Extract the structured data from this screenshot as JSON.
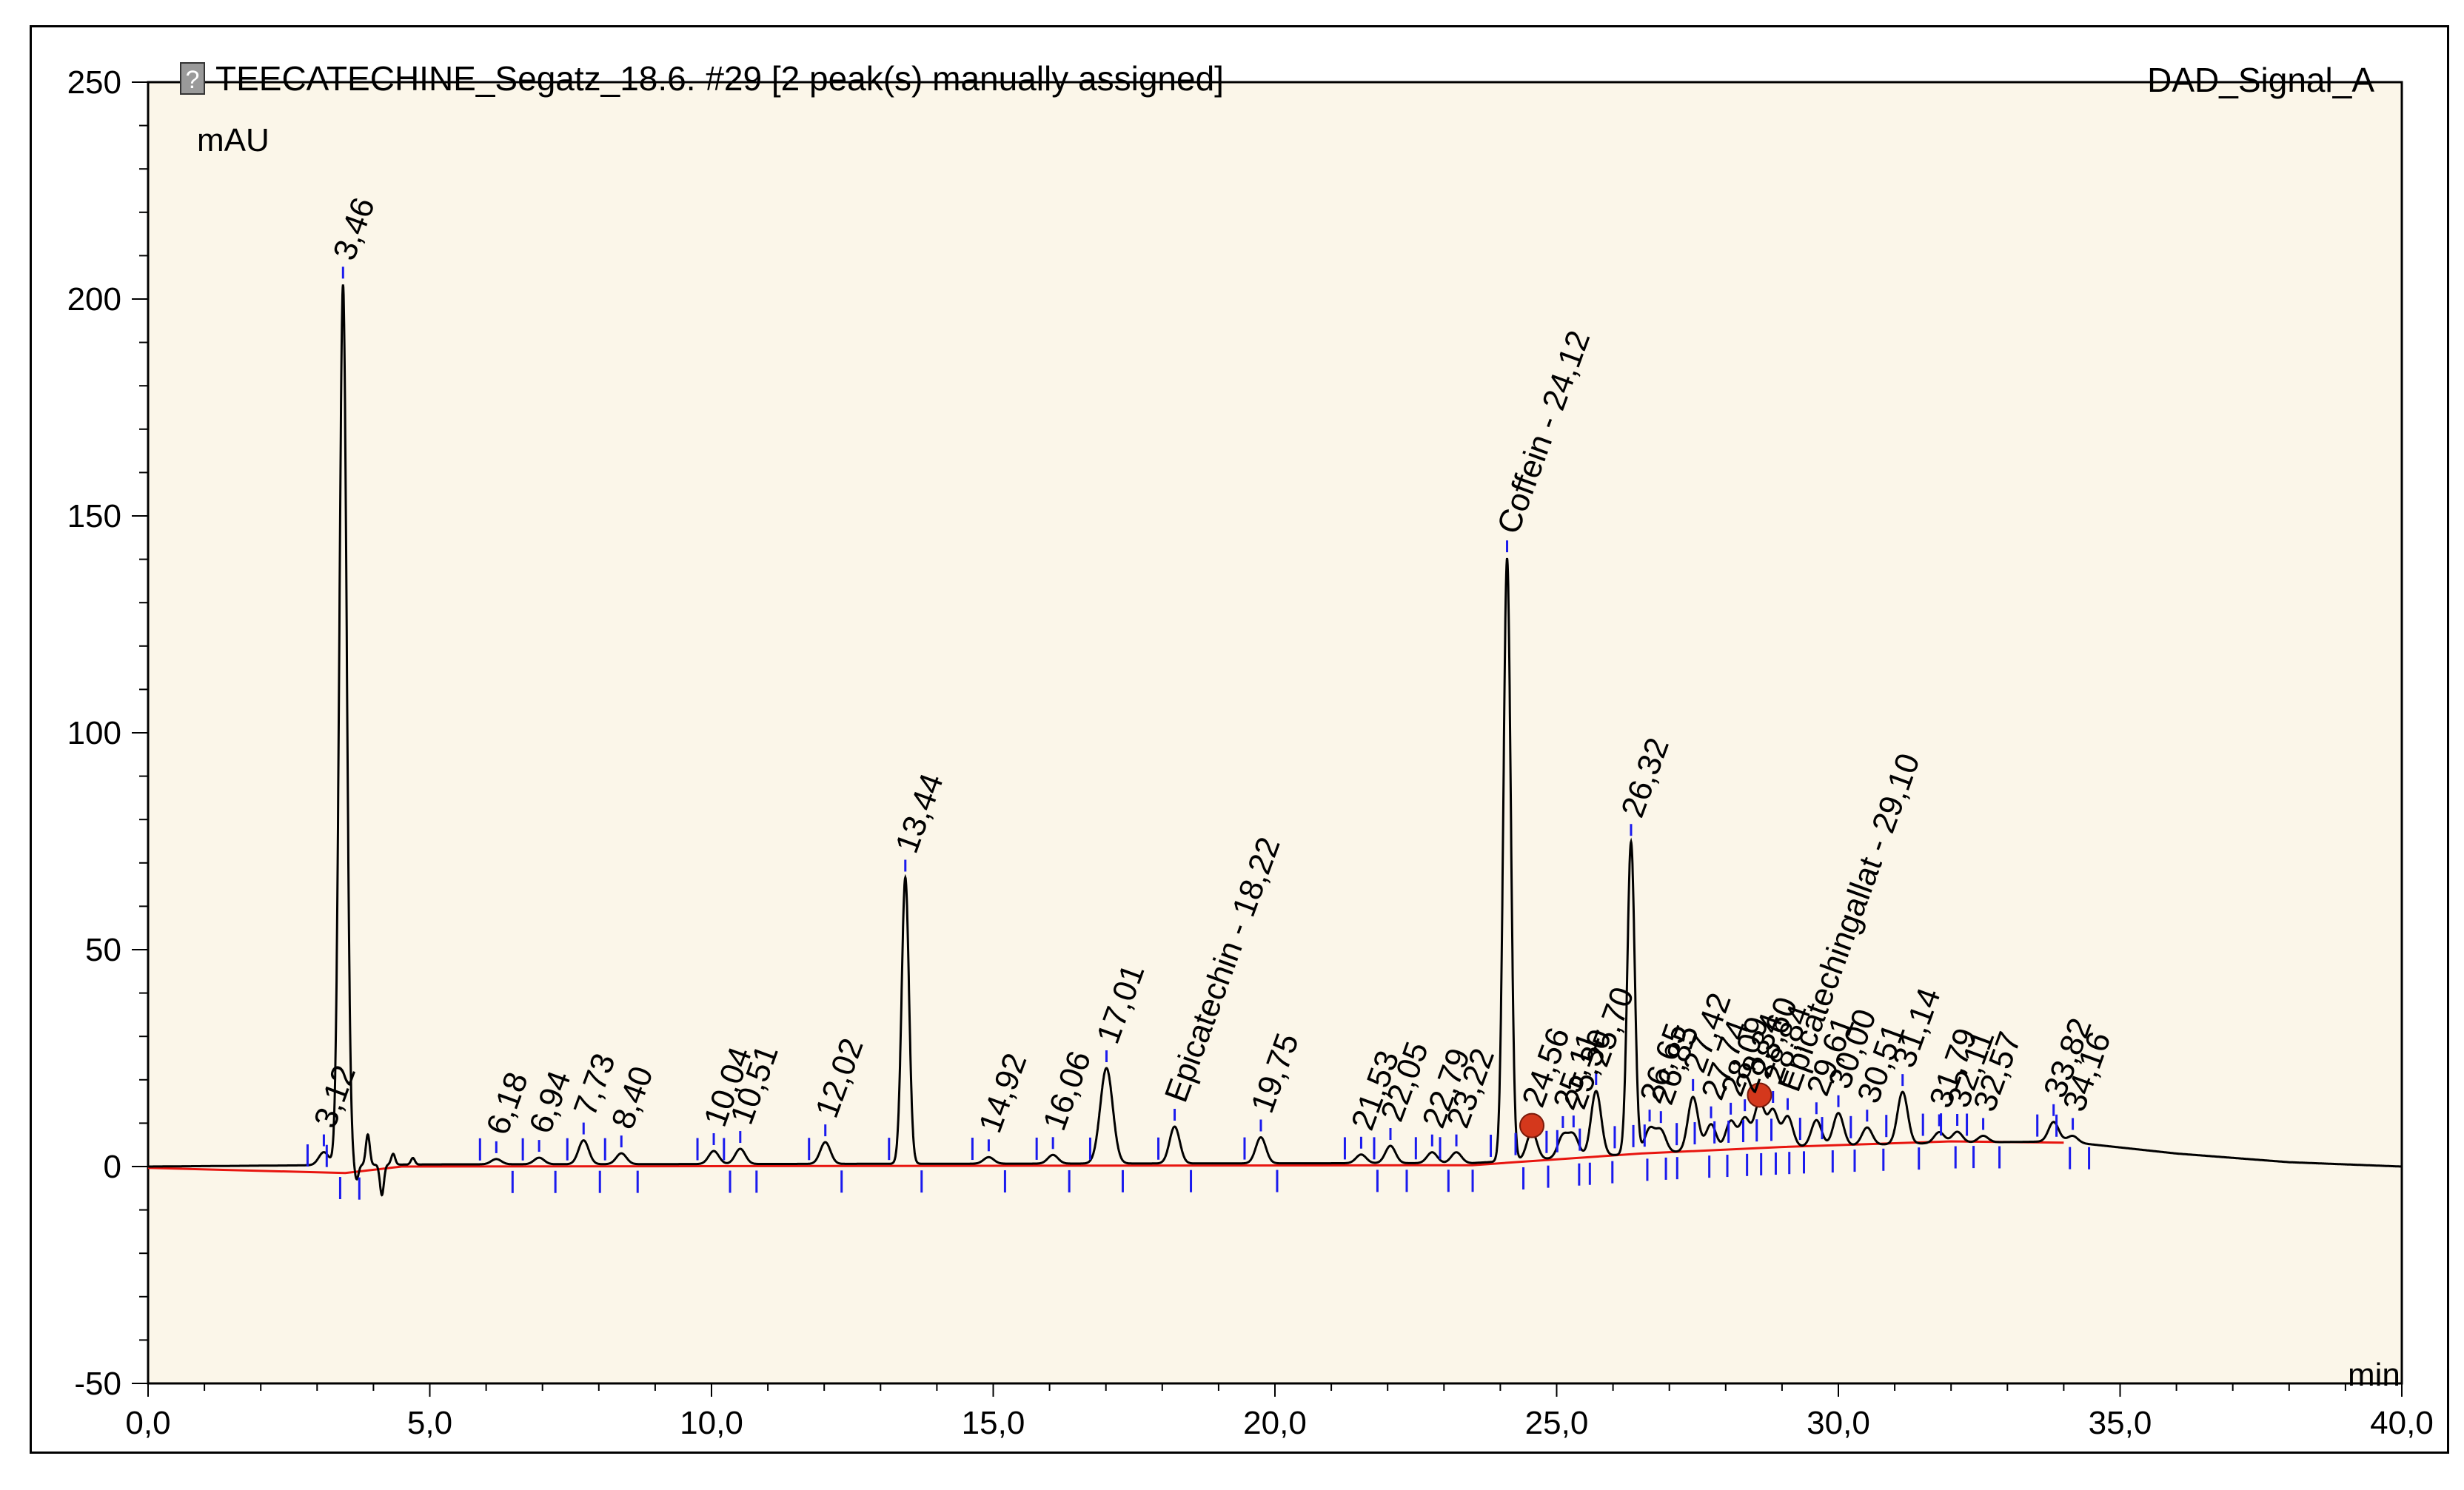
{
  "header": {
    "icon": "report-icon",
    "title": "TEECATECHINE_Segatz_18.6. #29 [2 peak(s) manually assigned]",
    "signal": "DAD_Signal_A"
  },
  "chart_data": {
    "type": "line",
    "title": "TEECATECHINE_Segatz_18.6. #29 [2 peak(s) manually assigned]",
    "xlabel": "min",
    "ylabel": "mAU",
    "xlim": [
      0,
      40
    ],
    "ylim": [
      -50,
      250
    ],
    "x_ticks": [
      "0,0",
      "5,0",
      "10,0",
      "15,0",
      "20,0",
      "25,0",
      "30,0",
      "35,0",
      "40,0"
    ],
    "y_ticks": [
      "-50",
      "0",
      "50",
      "100",
      "150",
      "200",
      "250"
    ],
    "grid": false,
    "colors": {
      "plot_background": "#fbf6e9",
      "signal": "#000000",
      "baseline": "#e8150f",
      "peak_markers": "#1a1aee",
      "manual_marker": "#d4381c"
    },
    "peaks": [
      {
        "label": "3,12",
        "rt": 3.12,
        "height": 3.0
      },
      {
        "label": "3,46",
        "rt": 3.46,
        "height": 203.0
      },
      {
        "label": "6,18",
        "rt": 6.18,
        "height": 1.2
      },
      {
        "label": "6,94",
        "rt": 6.94,
        "height": 1.5
      },
      {
        "label": "7,73",
        "rt": 7.73,
        "height": 5.5
      },
      {
        "label": "8,40",
        "rt": 8.4,
        "height": 2.5
      },
      {
        "label": "10,04",
        "rt": 10.04,
        "height": 3.0
      },
      {
        "label": "10,51",
        "rt": 10.51,
        "height": 3.5
      },
      {
        "label": "12,02",
        "rt": 12.02,
        "height": 5.0
      },
      {
        "label": "13,44",
        "rt": 13.44,
        "height": 66.0
      },
      {
        "label": "14,92",
        "rt": 14.92,
        "height": 1.5
      },
      {
        "label": "16,06",
        "rt": 16.06,
        "height": 2.0
      },
      {
        "label": "17,01",
        "rt": 17.01,
        "height": 22.0
      },
      {
        "label": "Epicatechin - 18,22",
        "rt": 18.22,
        "height": 8.5
      },
      {
        "label": "19,75",
        "rt": 19.75,
        "height": 6.0
      },
      {
        "label": "21,53",
        "rt": 21.53,
        "height": 2.0
      },
      {
        "label": "22,05",
        "rt": 22.05,
        "height": 4.0
      },
      {
        "label": "22,79",
        "rt": 22.79,
        "height": 2.5
      },
      {
        "label": "23,22",
        "rt": 23.22,
        "height": 2.5
      },
      {
        "label": "Coffein - 24,12",
        "rt": 24.12,
        "height": 139.0
      },
      {
        "label": "24,56",
        "rt": 24.56,
        "height": 6.5
      },
      {
        "label": "25,11",
        "rt": 25.11,
        "height": 5.0
      },
      {
        "label": "25,30",
        "rt": 25.3,
        "height": 5.0
      },
      {
        "label": "25,70",
        "rt": 25.7,
        "height": 15.0
      },
      {
        "label": "26,32",
        "rt": 26.32,
        "height": 72.0
      },
      {
        "label": "26,65",
        "rt": 26.65,
        "height": 5.5
      },
      {
        "label": "26,85",
        "rt": 26.85,
        "height": 5.0
      },
      {
        "label": "27,42",
        "rt": 27.42,
        "height": 12.5
      },
      {
        "label": "27,74",
        "rt": 27.74,
        "height": 6.0
      },
      {
        "label": "28,09",
        "rt": 28.09,
        "height": 6.5
      },
      {
        "label": "28,34",
        "rt": 28.34,
        "height": 7.0
      },
      {
        "label": "28,60",
        "rt": 28.6,
        "height": 10.5
      },
      {
        "label": "28,84",
        "rt": 28.84,
        "height": 8.5
      },
      {
        "label": "Epicatechingallat - 29,10",
        "rt": 29.1,
        "height": 7.0
      },
      {
        "label": "29,61",
        "rt": 29.61,
        "height": 6.0
      },
      {
        "label": "30,00",
        "rt": 30.0,
        "height": 7.5
      },
      {
        "label": "30,51",
        "rt": 30.51,
        "height": 4.0
      },
      {
        "label": "31,14",
        "rt": 31.14,
        "height": 12.0
      },
      {
        "label": "31,79",
        "rt": 31.79,
        "height": 2.5
      },
      {
        "label": "32,11",
        "rt": 32.11,
        "height": 2.5
      },
      {
        "label": "32,57",
        "rt": 32.57,
        "height": 1.5
      },
      {
        "label": "33,82",
        "rt": 33.82,
        "height": 4.5
      },
      {
        "label": "34,16",
        "rt": 34.16,
        "height": 1.5
      }
    ],
    "extra_features": [
      {
        "rt": 3.7,
        "value": -3.5
      },
      {
        "rt": 3.9,
        "value": 7.0
      },
      {
        "rt": 4.15,
        "value": -7.0
      },
      {
        "rt": 4.35,
        "value": 2.5
      },
      {
        "rt": 4.7,
        "value": 1.5
      }
    ],
    "baseline": [
      {
        "x": 0.0,
        "y": -0.3
      },
      {
        "x": 3.5,
        "y": -1.5
      },
      {
        "x": 4.5,
        "y": 0.0
      },
      {
        "x": 23.5,
        "y": 0.3
      },
      {
        "x": 26.5,
        "y": 3.0
      },
      {
        "x": 29.0,
        "y": 4.5
      },
      {
        "x": 32.0,
        "y": 5.8
      },
      {
        "x": 34.0,
        "y": 5.5
      }
    ],
    "drift": [
      {
        "x": 0.0,
        "y": 0.0
      },
      {
        "x": 5.0,
        "y": 0.5
      },
      {
        "x": 23.5,
        "y": 0.8
      },
      {
        "x": 26.5,
        "y": 3.0
      },
      {
        "x": 29.0,
        "y": 4.5
      },
      {
        "x": 32.0,
        "y": 5.5
      },
      {
        "x": 34.0,
        "y": 5.8
      },
      {
        "x": 36.0,
        "y": 3.0
      },
      {
        "x": 38.0,
        "y": 1.0
      },
      {
        "x": 40.0,
        "y": 0.0
      }
    ]
  }
}
